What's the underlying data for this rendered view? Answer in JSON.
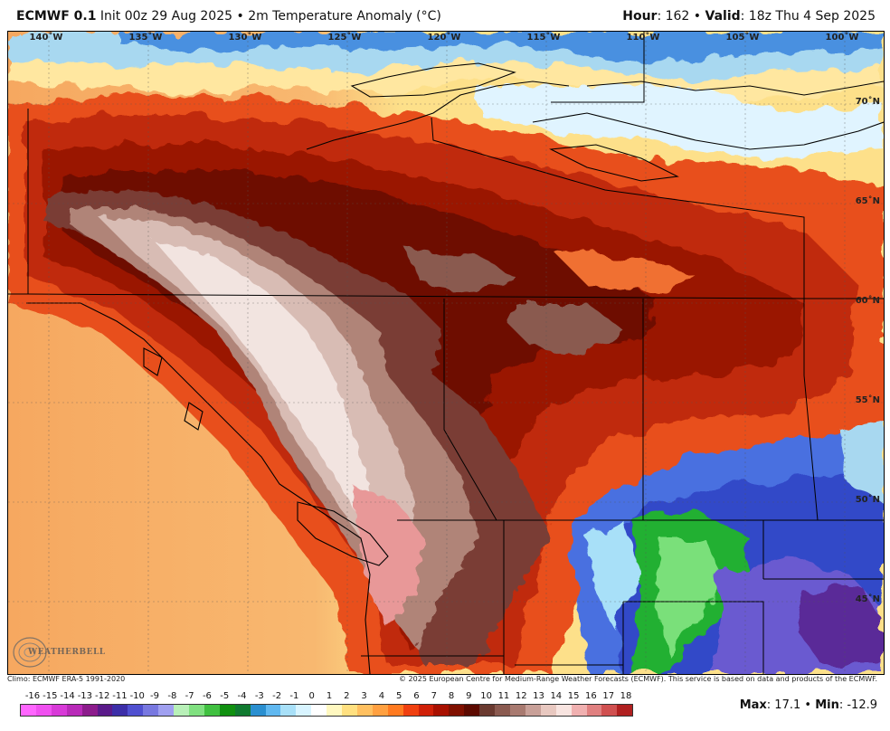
{
  "header": {
    "model": "ECMWF 0.1",
    "init_rest": "Init 00z 29 Aug 2025 • 2m Temperature Anomaly (°C)",
    "hour_label": "Hour",
    "hour_value": ": 162 • ",
    "valid_label": "Valid",
    "valid_value": ": 18z Thu 4 Sep 2025"
  },
  "map": {
    "lon_labels": [
      "140˚W",
      "135˚W",
      "130˚W",
      "125˚W",
      "120˚W",
      "115˚W",
      "110˚W",
      "105˚W",
      "100˚W"
    ],
    "lat_labels": [
      "70˚N",
      "65˚N",
      "60˚N",
      "55˚N",
      "50˚N",
      "45˚N"
    ],
    "logo_text": "WEATHERBELL"
  },
  "footer": {
    "climo": "Climo: ECMWF ERA-5 1991-2020",
    "copyright": "© 2025 European Centre for Medium-Range Weather Forecasts (ECMWF). This service is based on data and products of the ECMWF."
  },
  "colorbar": {
    "labels": [
      "-16",
      "-15",
      "-14",
      "-13",
      "-12",
      "-11",
      "-10",
      "-9",
      "-8",
      "-7",
      "-6",
      "-5",
      "-4",
      "-3",
      "-2",
      "-1",
      "0",
      "1",
      "2",
      "3",
      "4",
      "5",
      "6",
      "7",
      "8",
      "9",
      "10",
      "11",
      "12",
      "13",
      "14",
      "15",
      "16",
      "17",
      "18"
    ],
    "colors": [
      "#ff66ff",
      "#f050f0",
      "#d83ad8",
      "#b82ab8",
      "#8c1c8c",
      "#5a1a8a",
      "#3c2ea8",
      "#5050d0",
      "#7878e0",
      "#a0a0f0",
      "#b8f0b8",
      "#80e080",
      "#40c040",
      "#109010",
      "#107a30",
      "#2a8fd0",
      "#60b8f0",
      "#a8e0f8",
      "#d8f4ff",
      "#ffffff",
      "#fff8c0",
      "#ffe080",
      "#ffc060",
      "#ffa040",
      "#ff7a20",
      "#f04010",
      "#d02008",
      "#a81000",
      "#801000",
      "#5c0a00",
      "#6a3a30",
      "#8a5a50",
      "#a87a70",
      "#c8a098",
      "#e8c8c0",
      "#f8e4e0",
      "#f0b0b0",
      "#e08080",
      "#d05050",
      "#b02020"
    ]
  },
  "stats": {
    "max_label": "Max",
    "max_value": ": 17.1 • ",
    "min_label": "Min",
    "min_value": ": -12.9"
  }
}
